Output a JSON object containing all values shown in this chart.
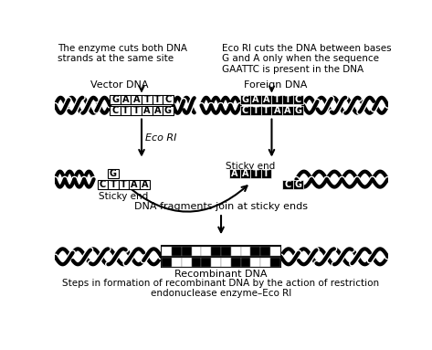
{
  "title": "Steps in formation of recombinant DNA by the action of restriction\nendonuclease enzyme–Eco RI",
  "top_left_text": "The enzyme cuts both DNA\nstrands at the same site",
  "top_right_text": "Eco RI cuts the DNA between bases\nG and A only when the sequence\nGAATTC is present in the DNA",
  "vector_label": "Vector DNA",
  "foreign_label": "Foreign DNA",
  "eco_ri_label": "Eco RI",
  "sticky_end_label1": "Sticky end",
  "sticky_end_label2": "Sticky end",
  "dna_join_label": "DNA fragments join at sticky ends",
  "recombinant_label": "Recombinant DNA",
  "bg_color": "#ffffff",
  "fig_w": 4.73,
  "fig_h": 3.83,
  "dpi": 100
}
